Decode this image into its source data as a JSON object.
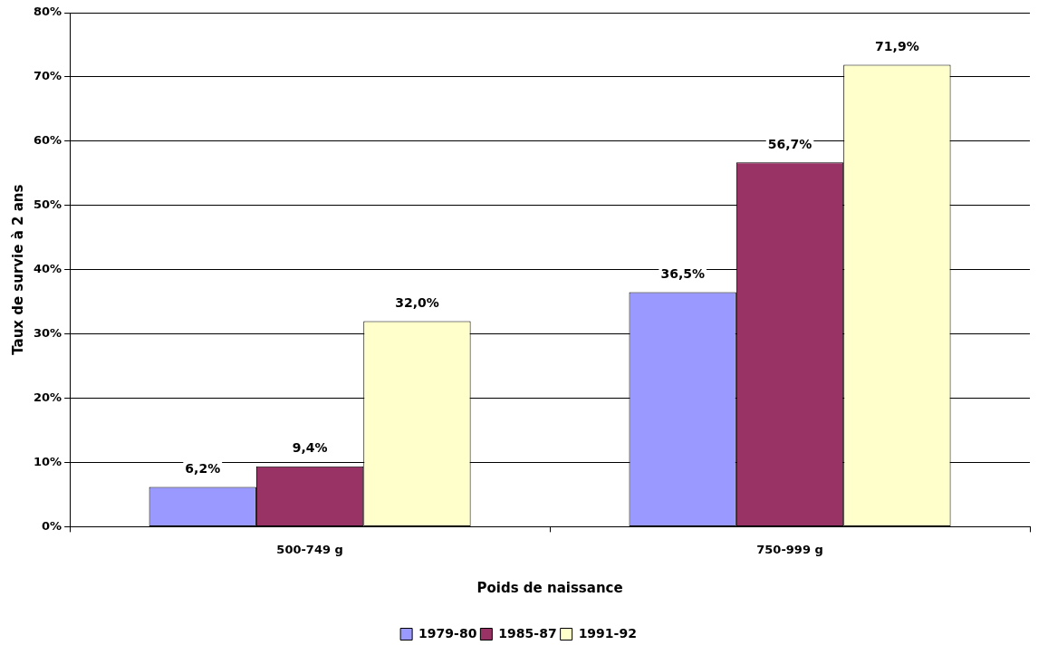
{
  "chart_data": {
    "type": "bar",
    "xlabel": "Poids de naissance",
    "ylabel": "Taux de survie à 2 ans",
    "categories": [
      "500-749 g",
      "750-999 g"
    ],
    "series": [
      {
        "name": "1979-80",
        "color": "#9999ff",
        "values": [
          6.2,
          36.5
        ],
        "value_labels": [
          "6,2%",
          "36,5%"
        ]
      },
      {
        "name": "1985-87",
        "color": "#993366",
        "values": [
          9.4,
          56.7
        ],
        "value_labels": [
          "9,4%",
          "56,7%"
        ]
      },
      {
        "name": "1991-92",
        "color": "#ffffcc",
        "values": [
          32.0,
          71.9
        ],
        "value_labels": [
          "32,0%",
          "71,9%"
        ]
      }
    ],
    "ylim": [
      0,
      80
    ],
    "yticks": [
      {
        "value": 0,
        "label": "0%"
      },
      {
        "value": 10,
        "label": "10%"
      },
      {
        "value": 20,
        "label": "20%"
      },
      {
        "value": 30,
        "label": "30%"
      },
      {
        "value": 40,
        "label": "40%"
      },
      {
        "value": 50,
        "label": "50%"
      },
      {
        "value": 60,
        "label": "60%"
      },
      {
        "value": 70,
        "label": "70%"
      },
      {
        "value": 80,
        "label": "80%"
      }
    ],
    "grid": "y",
    "legend": "bottom"
  }
}
